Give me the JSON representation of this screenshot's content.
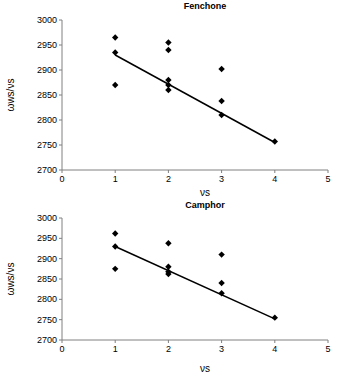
{
  "chart_data": [
    {
      "type": "scatter",
      "title": "Fenchone",
      "x_label": "νs",
      "y_label": "ωws/νs",
      "xlim": [
        0,
        5
      ],
      "xticks": [
        0,
        1,
        2,
        3,
        4,
        5
      ],
      "ylim": [
        2700,
        3000
      ],
      "yticks": [
        2700,
        2750,
        2800,
        2850,
        2900,
        2950,
        3000
      ],
      "grid": false,
      "series": [
        {
          "type": "scatter",
          "marker": "diamond",
          "color": "#000000",
          "x": [
            1,
            1,
            1,
            2,
            2,
            2,
            2,
            2,
            3,
            3,
            3,
            4
          ],
          "values": [
            2965,
            2935,
            2870,
            2955,
            2940,
            2880,
            2870,
            2860,
            2902,
            2838,
            2810,
            2757
          ]
        },
        {
          "type": "line",
          "line_style": "solid",
          "color": "#000000",
          "x": [
            1,
            4
          ],
          "values": [
            2930,
            2755
          ]
        }
      ]
    },
    {
      "type": "scatter",
      "title": "Camphor",
      "x_label": "νs",
      "y_label": "ωws/νs",
      "xlim": [
        0,
        5
      ],
      "xticks": [
        0,
        1,
        2,
        3,
        4,
        5
      ],
      "ylim": [
        2700,
        3000
      ],
      "yticks": [
        2700,
        2750,
        2800,
        2850,
        2900,
        2950,
        3000
      ],
      "grid": false,
      "series": [
        {
          "type": "scatter",
          "marker": "diamond",
          "color": "#000000",
          "x": [
            1,
            1,
            1,
            2,
            2,
            2,
            2,
            3,
            3,
            3,
            4
          ],
          "values": [
            2962,
            2930,
            2875,
            2938,
            2880,
            2868,
            2862,
            2910,
            2840,
            2815,
            2755
          ]
        },
        {
          "type": "line",
          "line_style": "solid",
          "color": "#000000",
          "x": [
            1,
            4
          ],
          "values": [
            2930,
            2752
          ]
        }
      ]
    }
  ]
}
